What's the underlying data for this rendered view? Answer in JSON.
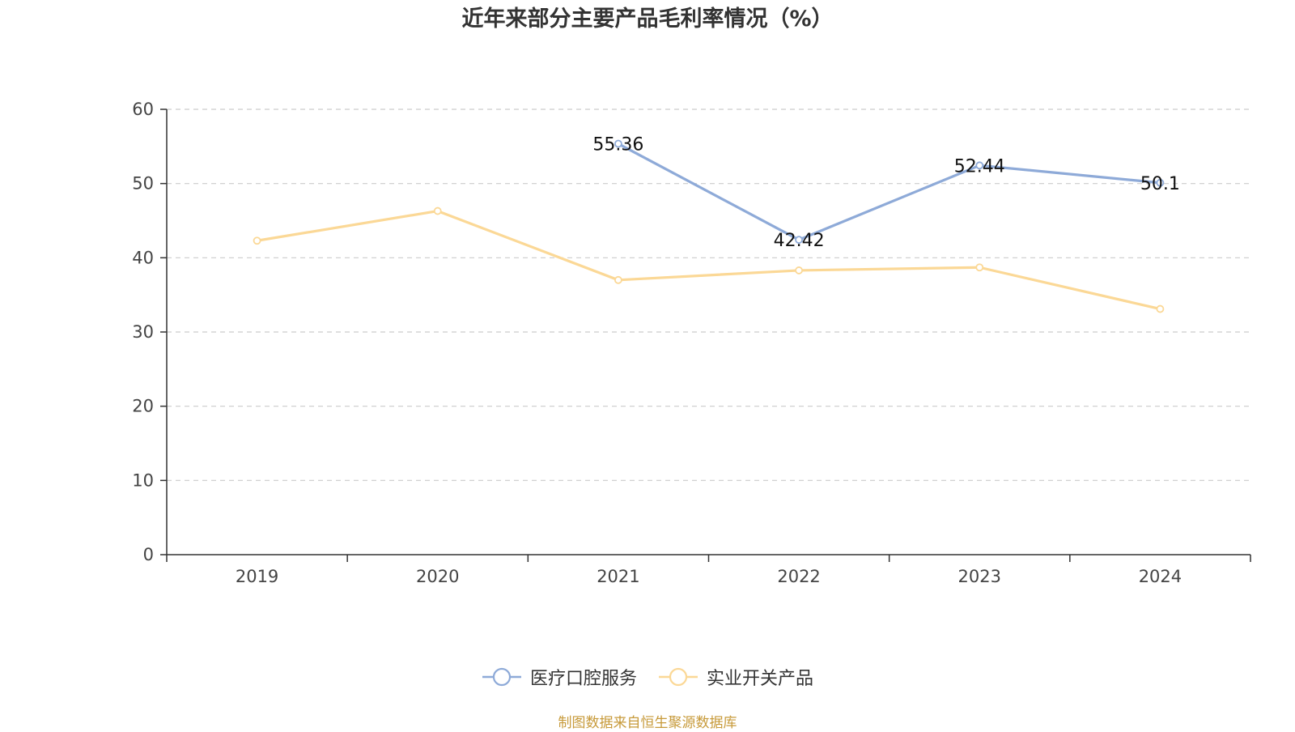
{
  "chart_data": {
    "type": "line",
    "title": "近年来部分主要产品毛利率情况（%）",
    "categories": [
      "2019",
      "2020",
      "2021",
      "2022",
      "2023",
      "2024"
    ],
    "ylim": [
      0,
      60
    ],
    "yticks": [
      0,
      10,
      20,
      30,
      40,
      50,
      60
    ],
    "grid": true,
    "legend_position": "bottom",
    "series": [
      {
        "name": "医疗口腔服务",
        "color": "#8eaad8",
        "values": [
          null,
          null,
          55.36,
          42.42,
          52.44,
          50.1
        ],
        "labels": [
          "",
          "",
          "55.36",
          "42.42",
          "52.44",
          "50.1"
        ]
      },
      {
        "name": "实业开关产品",
        "color": "#fbd896",
        "values": [
          42.3,
          46.3,
          37.0,
          38.3,
          38.7,
          33.1
        ],
        "labels": [
          "",
          "",
          "",
          "",
          "",
          ""
        ]
      }
    ]
  },
  "source": "制图数据来自恒生聚源数据库"
}
